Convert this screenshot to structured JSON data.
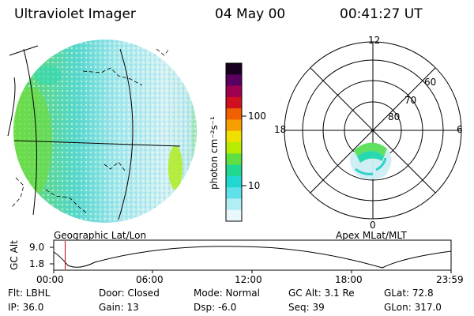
{
  "header": {
    "instrument": "Ultraviolet Imager",
    "date": "04 May 00",
    "time": "00:41:27 UT"
  },
  "left_panel": {
    "label": "Geographic Lat/Lon"
  },
  "colorbar": {
    "unit_label": "photon cm⁻²s⁻¹",
    "ticks": [
      "100",
      "10"
    ],
    "scale": "log",
    "colors": [
      "#1a0020",
      "#5a0060",
      "#a00050",
      "#d01020",
      "#f06000",
      "#f5a000",
      "#f0e000",
      "#b8ec00",
      "#60e040",
      "#20d890",
      "#20d8d0",
      "#60e0e8",
      "#b0eef4",
      "#e8f8fb"
    ]
  },
  "right_panel": {
    "label": "Apex MLat/MLT",
    "mlt_labels": [
      "12",
      "18",
      "6",
      "0"
    ],
    "lat_labels": [
      "60",
      "70",
      "80"
    ]
  },
  "timeline": {
    "ylabel": "GC Alt",
    "y_ticks": [
      "9.0",
      "1.8"
    ],
    "x_ticks": [
      "00:00",
      "06:00",
      "12:00",
      "18:00",
      "23:59"
    ],
    "current_time_hours": 0.69,
    "marker_color": "#c00000"
  },
  "footer": {
    "row1": {
      "filter": "Flt: LBHL",
      "door": "Door: Closed",
      "mode": "Mode: Normal",
      "gc_alt": "GC Alt: 3.1 Re",
      "glat": "GLat:  72.8"
    },
    "row2": {
      "ip": "IP: 36.0",
      "gain": "Gain: 13",
      "dsp": "Dsp:   -6.0",
      "seq": "Seq: 39",
      "glon": "GLon: 317.0"
    }
  }
}
